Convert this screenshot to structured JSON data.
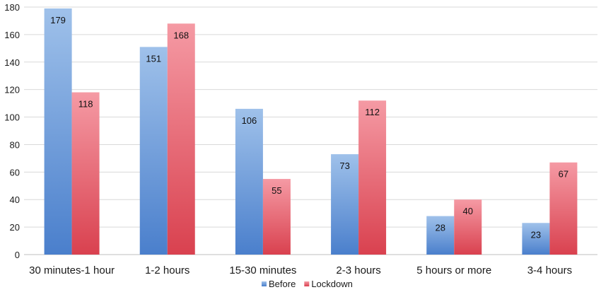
{
  "chart_data": {
    "type": "bar",
    "categories": [
      "30 minutes-1 hour",
      "1-2 hours",
      "15-30 minutes",
      "2-3 hours",
      "5 hours or more",
      "3-4 hours"
    ],
    "series": [
      {
        "name": "Before",
        "values": [
          179,
          151,
          106,
          73,
          28,
          23
        ],
        "color_top": "#9fc1ea",
        "color_bottom": "#4a7fcc"
      },
      {
        "name": "Lockdown",
        "values": [
          118,
          168,
          55,
          112,
          40,
          67
        ],
        "color_top": "#f59aa4",
        "color_bottom": "#d9414f"
      }
    ],
    "ylim": [
      0,
      180
    ],
    "yticks": [
      0,
      20,
      40,
      60,
      80,
      100,
      120,
      140,
      160,
      180
    ],
    "grid": true,
    "legend": "bottom-center",
    "data_labels": true
  }
}
